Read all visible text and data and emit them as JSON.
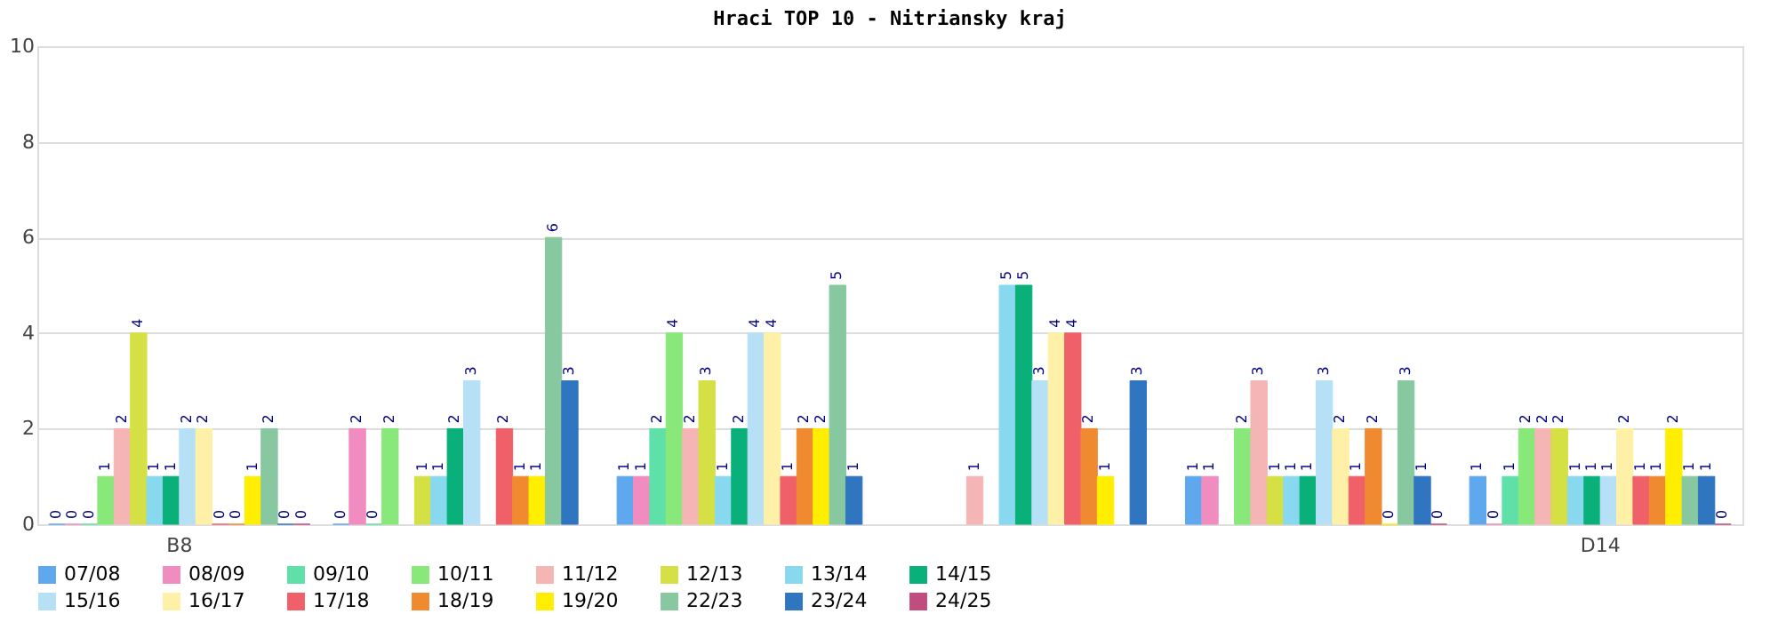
{
  "chart_data": {
    "type": "bar",
    "title": "Hraci TOP 10 - Nitriansky kraj",
    "categories": [
      "B8",
      null,
      null,
      null,
      null,
      "D14"
    ],
    "ylim": [
      0,
      10
    ],
    "yticks": [
      0,
      2,
      4,
      6,
      8,
      10
    ],
    "grid": "y",
    "legend": "bottom",
    "data_labels": true,
    "series": [
      {
        "name": "07/08",
        "color": "#5fa8ee",
        "values": [
          0,
          0,
          1,
          null,
          1,
          1
        ]
      },
      {
        "name": "08/09",
        "color": "#f08cbf",
        "values": [
          0,
          2,
          1,
          null,
          1,
          0
        ]
      },
      {
        "name": "09/10",
        "color": "#5fe0a8",
        "values": [
          0,
          0,
          2,
          null,
          null,
          1
        ]
      },
      {
        "name": "10/11",
        "color": "#88e87a",
        "values": [
          1,
          2,
          4,
          null,
          2,
          2
        ]
      },
      {
        "name": "11/12",
        "color": "#f5b5b5",
        "values": [
          2,
          null,
          2,
          1,
          3,
          2
        ]
      },
      {
        "name": "12/13",
        "color": "#d4e044",
        "values": [
          4,
          1,
          3,
          null,
          1,
          2
        ]
      },
      {
        "name": "13/14",
        "color": "#88d8f0",
        "values": [
          1,
          1,
          1,
          5,
          1,
          1
        ]
      },
      {
        "name": "14/15",
        "color": "#0ab07a",
        "values": [
          1,
          2,
          2,
          5,
          1,
          1
        ]
      },
      {
        "name": "15/16",
        "color": "#b5e0f5",
        "values": [
          2,
          3,
          4,
          3,
          3,
          1
        ]
      },
      {
        "name": "16/17",
        "color": "#fff0a8",
        "values": [
          2,
          null,
          4,
          4,
          2,
          2
        ]
      },
      {
        "name": "17/18",
        "color": "#f06068",
        "values": [
          0,
          2,
          1,
          4,
          1,
          1
        ]
      },
      {
        "name": "18/19",
        "color": "#f08a30",
        "values": [
          0,
          1,
          2,
          2,
          2,
          1
        ]
      },
      {
        "name": "19/20",
        "color": "#ffee00",
        "values": [
          1,
          1,
          2,
          1,
          0,
          2
        ]
      },
      {
        "name": "22/23",
        "color": "#88c8a0",
        "values": [
          2,
          6,
          5,
          null,
          3,
          1
        ]
      },
      {
        "name": "23/24",
        "color": "#3075c0",
        "values": [
          0,
          3,
          1,
          3,
          1,
          1
        ]
      },
      {
        "name": "24/25",
        "color": "#c04c80",
        "values": [
          0,
          null,
          null,
          null,
          0,
          0
        ]
      }
    ]
  }
}
